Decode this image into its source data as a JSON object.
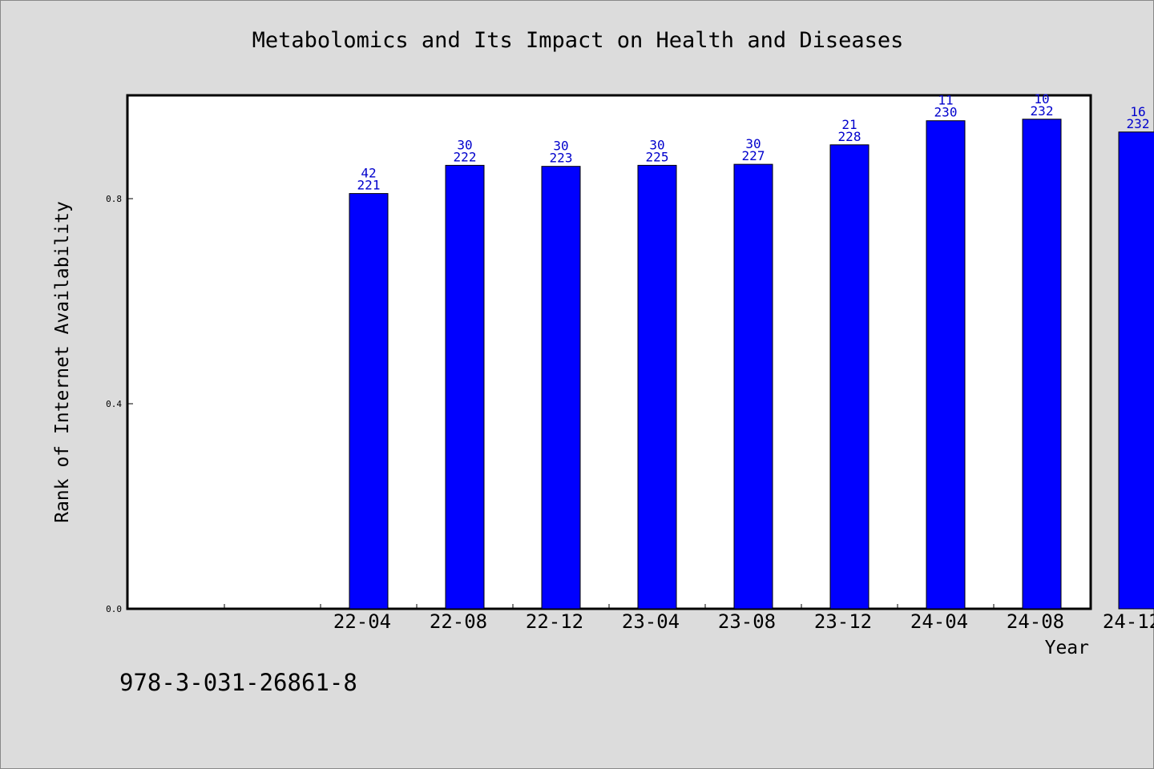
{
  "chart_data": {
    "type": "bar",
    "title": "Metabolomics and Its Impact on Health and Diseases",
    "xlabel": "Year",
    "ylabel": "Rank of Internet Availability",
    "categories": [
      "",
      "22-04",
      "22-08",
      "22-12",
      "23-04",
      "23-08",
      "23-12",
      "24-04",
      "24-08",
      "24-12"
    ],
    "values": [
      null,
      0.81,
      0.865,
      0.863,
      0.865,
      0.867,
      0.905,
      0.952,
      0.955,
      0.93
    ],
    "bar_labels_top": [
      "",
      "42",
      "30",
      "30",
      "30",
      "30",
      "21",
      "11",
      "10",
      "16"
    ],
    "bar_labels_bottom": [
      "",
      "221",
      "222",
      "223",
      "225",
      "227",
      "228",
      "230",
      "232",
      "232"
    ],
    "yticks": [
      0.0,
      0.4,
      0.8
    ],
    "ytick_labels": [
      "0.0",
      "0.4",
      "0.8"
    ],
    "ylim": [
      0,
      1.0
    ],
    "grid": false,
    "bar_color": "#0000ff",
    "label_color": "#0000cc"
  },
  "footer": {
    "note": "978-3-031-26861-8"
  }
}
